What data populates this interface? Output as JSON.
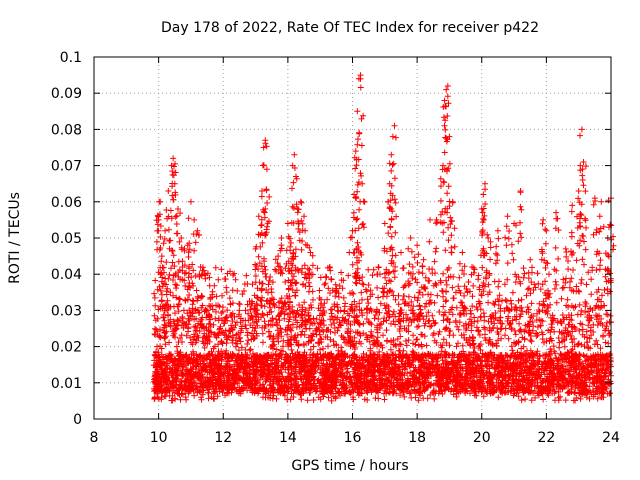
{
  "chart_data": {
    "type": "scatter",
    "title": "Day 178 of 2022, Rate Of TEC Index for receiver p422",
    "xlabel": "GPS time / hours",
    "ylabel": "ROTI / TECUs",
    "xlim": [
      8,
      24
    ],
    "ylim": [
      0,
      0.1
    ],
    "grid": true,
    "legend": "none",
    "marker": "+",
    "color": "#ff0000",
    "x_ticks": [
      8,
      10,
      12,
      14,
      16,
      18,
      20,
      22,
      24
    ],
    "x_tick_labels": [
      "8",
      "10",
      "12",
      "14",
      "16",
      "18",
      "20",
      "22",
      "24"
    ],
    "y_ticks": [
      0,
      0.01,
      0.02,
      0.03,
      0.04,
      0.05,
      0.06,
      0.07,
      0.08,
      0.09,
      0.1
    ],
    "y_tick_labels": [
      "0",
      "0.01",
      "0.02",
      "0.03",
      "0.04",
      "0.05",
      "0.06",
      "0.07",
      "0.08",
      "0.09",
      "0.1"
    ],
    "data_window_hours": [
      9.85,
      24.0
    ],
    "typical_roti_range": [
      0.005,
      0.02
    ],
    "series": [
      {
        "name": "ROTI",
        "points": [
          [
            9.9,
            0.012
          ],
          [
            9.95,
            0.02
          ],
          [
            10.0,
            0.055
          ],
          [
            10.05,
            0.06
          ],
          [
            10.1,
            0.045
          ],
          [
            10.2,
            0.052
          ],
          [
            10.3,
            0.063
          ],
          [
            10.4,
            0.07
          ],
          [
            10.45,
            0.072
          ],
          [
            10.5,
            0.065
          ],
          [
            10.6,
            0.058
          ],
          [
            10.7,
            0.05
          ],
          [
            10.8,
            0.047
          ],
          [
            10.9,
            0.048
          ],
          [
            11.0,
            0.06
          ],
          [
            11.1,
            0.055
          ],
          [
            11.2,
            0.052
          ],
          [
            11.3,
            0.042
          ],
          [
            11.4,
            0.041
          ],
          [
            11.5,
            0.03
          ],
          [
            11.7,
            0.026
          ],
          [
            11.9,
            0.025
          ],
          [
            12.1,
            0.023
          ],
          [
            12.3,
            0.032
          ],
          [
            12.5,
            0.03
          ],
          [
            12.9,
            0.032
          ],
          [
            13.0,
            0.047
          ],
          [
            13.1,
            0.056
          ],
          [
            13.2,
            0.063
          ],
          [
            13.25,
            0.075
          ],
          [
            13.3,
            0.077
          ],
          [
            13.35,
            0.069
          ],
          [
            13.5,
            0.035
          ],
          [
            13.7,
            0.045
          ],
          [
            13.8,
            0.05
          ],
          [
            14.0,
            0.054
          ],
          [
            14.1,
            0.043
          ],
          [
            14.15,
            0.07
          ],
          [
            14.2,
            0.073
          ],
          [
            14.25,
            0.067
          ],
          [
            14.3,
            0.058
          ],
          [
            14.4,
            0.06
          ],
          [
            14.5,
            0.056
          ],
          [
            14.6,
            0.048
          ],
          [
            14.7,
            0.046
          ],
          [
            15.0,
            0.03
          ],
          [
            15.3,
            0.042
          ],
          [
            15.5,
            0.035
          ],
          [
            15.7,
            0.028
          ],
          [
            15.9,
            0.046
          ],
          [
            16.0,
            0.052
          ],
          [
            16.05,
            0.062
          ],
          [
            16.1,
            0.074
          ],
          [
            16.15,
            0.085
          ],
          [
            16.2,
            0.094
          ],
          [
            16.25,
            0.095
          ],
          [
            16.3,
            0.065
          ],
          [
            16.5,
            0.037
          ],
          [
            16.8,
            0.042
          ],
          [
            17.0,
            0.054
          ],
          [
            17.1,
            0.06
          ],
          [
            17.15,
            0.065
          ],
          [
            17.2,
            0.073
          ],
          [
            17.25,
            0.078
          ],
          [
            17.3,
            0.081
          ],
          [
            17.5,
            0.046
          ],
          [
            17.8,
            0.05
          ],
          [
            18.0,
            0.048
          ],
          [
            18.2,
            0.044
          ],
          [
            18.4,
            0.055
          ],
          [
            18.6,
            0.055
          ],
          [
            18.8,
            0.07
          ],
          [
            18.85,
            0.088
          ],
          [
            18.9,
            0.091
          ],
          [
            18.95,
            0.092
          ],
          [
            19.0,
            0.078
          ],
          [
            19.1,
            0.06
          ],
          [
            19.4,
            0.046
          ],
          [
            19.7,
            0.042
          ],
          [
            20.0,
            0.058
          ],
          [
            20.05,
            0.062
          ],
          [
            20.1,
            0.065
          ],
          [
            20.2,
            0.05
          ],
          [
            20.5,
            0.052
          ],
          [
            20.8,
            0.056
          ],
          [
            21.0,
            0.054
          ],
          [
            21.2,
            0.063
          ],
          [
            21.5,
            0.044
          ],
          [
            21.9,
            0.055
          ],
          [
            22.0,
            0.052
          ],
          [
            22.3,
            0.057
          ],
          [
            22.6,
            0.047
          ],
          [
            22.8,
            0.059
          ],
          [
            23.0,
            0.063
          ],
          [
            23.05,
            0.07
          ],
          [
            23.1,
            0.08
          ],
          [
            23.15,
            0.071
          ],
          [
            23.5,
            0.061
          ],
          [
            23.7,
            0.06
          ],
          [
            23.9,
            0.05
          ],
          [
            24.0,
            0.061
          ]
        ]
      }
    ]
  }
}
